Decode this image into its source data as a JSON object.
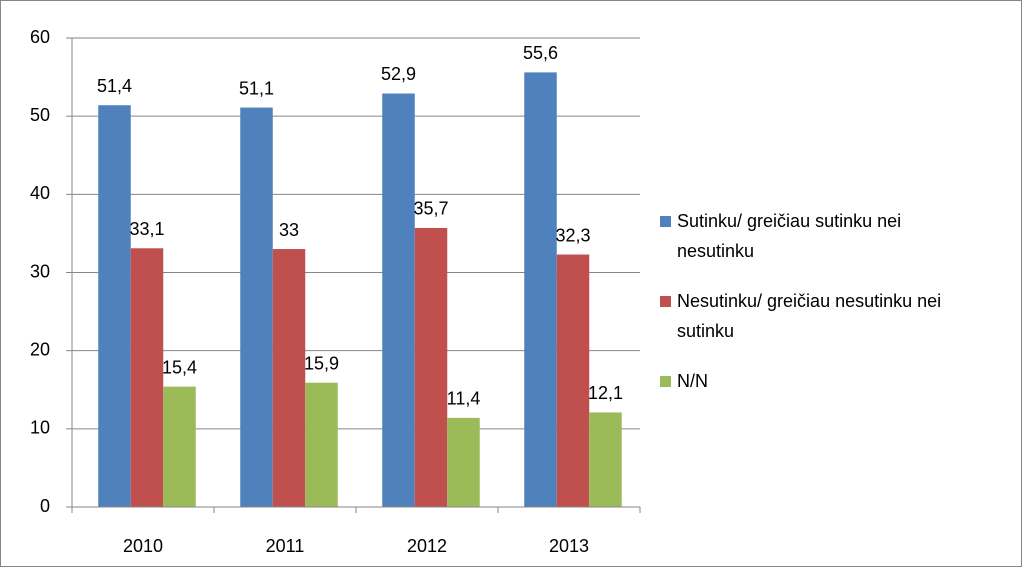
{
  "chart_data": {
    "type": "bar",
    "categories": [
      "2010",
      "2011",
      "2012",
      "2013"
    ],
    "series": [
      {
        "name": "Sutinku/ greičiau sutinku nei nesutinku",
        "color": "#4f81bd",
        "values": [
          51.4,
          51.1,
          52.9,
          55.6
        ],
        "value_labels": [
          "51,4",
          "51,1",
          "52,9",
          "55,6"
        ]
      },
      {
        "name": "Nesutinku/ greičiau nesutinku nei sutinku",
        "color": "#c0504d",
        "values": [
          33.1,
          33,
          35.7,
          32.3
        ],
        "value_labels": [
          "33,1",
          "33",
          "35,7",
          "32,3"
        ]
      },
      {
        "name": "N/N",
        "color": "#9bbb59",
        "values": [
          15.4,
          15.9,
          11.4,
          12.1
        ],
        "value_labels": [
          "15,4",
          "15,9",
          "11,4",
          "12,1"
        ]
      }
    ],
    "ylim": [
      0,
      60
    ],
    "yticks": [
      0,
      10,
      20,
      30,
      40,
      50,
      60
    ],
    "grid": true,
    "legend": "right"
  }
}
